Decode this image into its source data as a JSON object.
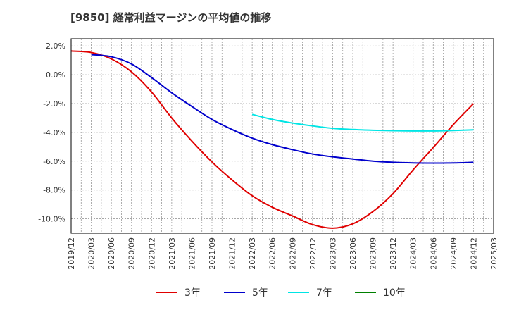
{
  "chart_data": {
    "type": "line",
    "title": "[9850]  経常利益マージンの平均値の推移",
    "xlabel": "",
    "ylabel": "",
    "ylim": [
      -11.0,
      2.5
    ],
    "y_ticks": [
      2.0,
      0.0,
      -2.0,
      -4.0,
      -6.0,
      -8.0,
      -10.0
    ],
    "y_tick_labels": [
      "2.0%",
      "0.0%",
      "-2.0%",
      "-4.0%",
      "-6.0%",
      "-8.0%",
      "-10.0%"
    ],
    "x_tick_labels": [
      "2019/12",
      "2020/03",
      "2020/06",
      "2020/09",
      "2020/12",
      "2021/03",
      "2021/06",
      "2021/09",
      "2021/12",
      "2022/03",
      "2022/06",
      "2022/09",
      "2022/12",
      "2023/03",
      "2023/06",
      "2023/09",
      "2023/12",
      "2024/03",
      "2024/06",
      "2024/09",
      "2024/12",
      "2025/03"
    ],
    "grid": true,
    "legend_position": "bottom",
    "series": [
      {
        "name": "3年",
        "color": "#e00000",
        "x": [
          "2019/12",
          "2020/03",
          "2020/06",
          "2020/09",
          "2020/12",
          "2021/03",
          "2021/06",
          "2021/09",
          "2021/12",
          "2022/03",
          "2022/06",
          "2022/09",
          "2022/12",
          "2023/03",
          "2023/06",
          "2023/09",
          "2023/12",
          "2024/03",
          "2024/06",
          "2024/09",
          "2024/12"
        ],
        "values": [
          1.65,
          1.55,
          1.1,
          0.2,
          -1.2,
          -3.0,
          -4.6,
          -6.05,
          -7.3,
          -8.4,
          -9.2,
          -9.8,
          -10.4,
          -10.65,
          -10.35,
          -9.5,
          -8.25,
          -6.6,
          -5.05,
          -3.45,
          -2.0
        ]
      },
      {
        "name": "5年",
        "color": "#0000cc",
        "x": [
          "2020/03",
          "2020/06",
          "2020/09",
          "2020/12",
          "2021/03",
          "2021/06",
          "2021/09",
          "2021/12",
          "2022/03",
          "2022/06",
          "2022/09",
          "2022/12",
          "2023/03",
          "2023/06",
          "2023/09",
          "2023/12",
          "2024/03",
          "2024/06",
          "2024/09",
          "2024/12"
        ],
        "values": [
          1.4,
          1.25,
          0.75,
          -0.2,
          -1.25,
          -2.2,
          -3.1,
          -3.8,
          -4.4,
          -4.85,
          -5.2,
          -5.5,
          -5.7,
          -5.85,
          -6.0,
          -6.08,
          -6.12,
          -6.13,
          -6.12,
          -6.08
        ]
      },
      {
        "name": "7年",
        "color": "#00e5e5",
        "x": [
          "2022/03",
          "2022/06",
          "2022/09",
          "2022/12",
          "2023/03",
          "2023/06",
          "2023/09",
          "2023/12",
          "2024/03",
          "2024/06",
          "2024/09",
          "2024/12"
        ],
        "values": [
          -2.75,
          -3.1,
          -3.35,
          -3.55,
          -3.72,
          -3.8,
          -3.85,
          -3.88,
          -3.9,
          -3.9,
          -3.87,
          -3.82
        ]
      },
      {
        "name": "10年",
        "color": "#008000",
        "x": [],
        "values": []
      }
    ]
  }
}
